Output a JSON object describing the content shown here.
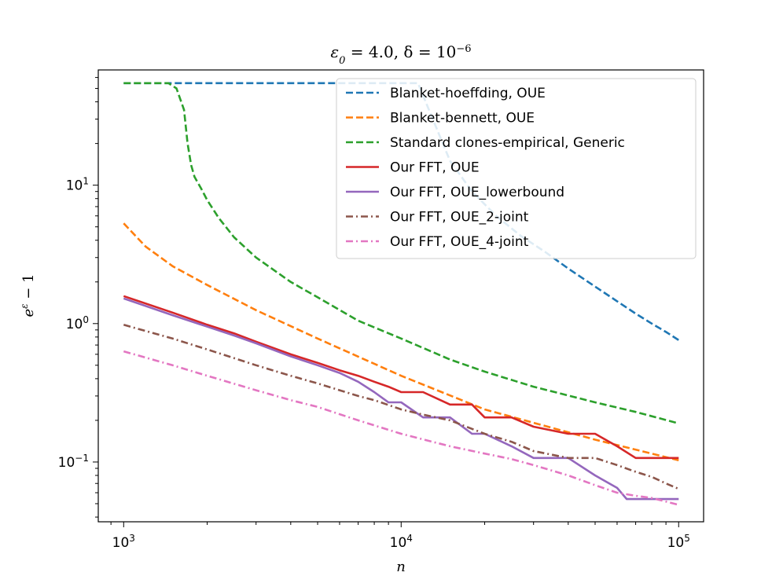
{
  "chart_data": {
    "type": "line",
    "title": "ε0 = 4.0, δ = 10^-6",
    "title_parts": {
      "main": "ε",
      "sub": "0",
      "rest": " = 4.0, δ = 10",
      "sup": "−6"
    },
    "xlabel": "n",
    "ylabel": {
      "base": "e",
      "sup": "ε",
      "rest": " − 1"
    },
    "xscale": "log",
    "yscale": "log",
    "xlim": [
      810,
      123000
    ],
    "ylim": [
      0.037,
      68
    ],
    "x_ticks": [
      {
        "value": 1000,
        "base": "10",
        "exp": "3"
      },
      {
        "value": 10000,
        "base": "10",
        "exp": "4"
      },
      {
        "value": 100000,
        "base": "10",
        "exp": "5"
      }
    ],
    "y_ticks": [
      {
        "value": 0.1,
        "base": "10",
        "exp": "−1"
      },
      {
        "value": 1,
        "base": "10",
        "exp": "0"
      },
      {
        "value": 10,
        "base": "10",
        "exp": "1"
      }
    ],
    "legend_position": "top-right",
    "series": [
      {
        "name": "Blanket-hoeffding, OUE",
        "color": "#1f77b4",
        "dash": "dashed",
        "x": [
          1000,
          11500,
          13000,
          15000,
          18000,
          22000,
          27000,
          33000,
          40000,
          50000,
          60000,
          70000,
          80000,
          90000,
          100000
        ],
        "y": [
          54.6,
          54.6,
          30,
          15,
          9,
          6,
          4.3,
          3.3,
          2.5,
          1.85,
          1.45,
          1.18,
          1.0,
          0.87,
          0.76
        ]
      },
      {
        "name": "Blanket-bennett, OUE",
        "color": "#ff7f0e",
        "dash": "dashed",
        "x": [
          1000,
          1200,
          1500,
          2000,
          3000,
          5000,
          10000,
          20000,
          50000,
          100000
        ],
        "y": [
          5.3,
          3.6,
          2.6,
          1.9,
          1.25,
          0.78,
          0.42,
          0.24,
          0.145,
          0.103
        ]
      },
      {
        "name": "Standard clones-empirical, Generic",
        "color": "#2ca02c",
        "dash": "dashed",
        "x": [
          1000,
          1450,
          1550,
          1650,
          1700,
          1750,
          1800,
          1900,
          2000,
          2200,
          2500,
          3000,
          4000,
          5000,
          7000,
          10000,
          15000,
          20000,
          30000,
          50000,
          70000,
          100000
        ],
        "y": [
          54.6,
          54.6,
          50,
          35,
          20,
          14,
          11.5,
          9.5,
          7.8,
          5.8,
          4.2,
          3.0,
          2.0,
          1.55,
          1.05,
          0.78,
          0.55,
          0.45,
          0.35,
          0.27,
          0.23,
          0.19
        ]
      },
      {
        "name": "Our FFT, OUE",
        "color": "#d62728",
        "dash": "solid",
        "x": [
          1000,
          1500,
          2000,
          2500,
          3000,
          4000,
          5000,
          6000,
          7000,
          8000,
          9000,
          10000,
          12000,
          15000,
          18000,
          20000,
          25000,
          30000,
          40000,
          50000,
          60000,
          70000,
          80000,
          100000
        ],
        "y": [
          1.58,
          1.2,
          0.98,
          0.85,
          0.74,
          0.6,
          0.52,
          0.46,
          0.42,
          0.38,
          0.35,
          0.32,
          0.32,
          0.26,
          0.26,
          0.21,
          0.21,
          0.18,
          0.16,
          0.16,
          0.13,
          0.107,
          0.107,
          0.107
        ]
      },
      {
        "name": "Our FFT, OUE_lowerbound",
        "color": "#9467bd",
        "dash": "solid",
        "x": [
          1000,
          1500,
          2000,
          2500,
          3000,
          4000,
          5000,
          6000,
          7000,
          8000,
          9000,
          10000,
          12000,
          15000,
          18000,
          20000,
          25000,
          30000,
          40000,
          50000,
          60000,
          65000,
          70000,
          100000
        ],
        "y": [
          1.52,
          1.15,
          0.95,
          0.82,
          0.72,
          0.58,
          0.5,
          0.44,
          0.38,
          0.32,
          0.27,
          0.27,
          0.21,
          0.21,
          0.16,
          0.16,
          0.13,
          0.107,
          0.107,
          0.08,
          0.065,
          0.054,
          0.054,
          0.054
        ]
      },
      {
        "name": "Our FFT, OUE_2-joint",
        "color": "#8c564b",
        "dash": "dashdot",
        "x": [
          1000,
          1500,
          2000,
          3000,
          4000,
          5000,
          6000,
          7000,
          8000,
          10000,
          12000,
          15000,
          20000,
          25000,
          30000,
          40000,
          50000,
          60000,
          70000,
          80000,
          90000,
          100000
        ],
        "y": [
          0.98,
          0.78,
          0.65,
          0.5,
          0.42,
          0.37,
          0.33,
          0.3,
          0.28,
          0.24,
          0.22,
          0.2,
          0.16,
          0.14,
          0.12,
          0.107,
          0.107,
          0.095,
          0.085,
          0.078,
          0.07,
          0.064
        ]
      },
      {
        "name": "Our FFT, OUE_4-joint",
        "color": "#e377c2",
        "dash": "dashdot",
        "x": [
          1000,
          1500,
          2000,
          3000,
          4000,
          5000,
          7000,
          10000,
          15000,
          20000,
          25000,
          30000,
          40000,
          50000,
          60000,
          70000,
          80000,
          100000
        ],
        "y": [
          0.63,
          0.5,
          0.42,
          0.33,
          0.28,
          0.25,
          0.2,
          0.16,
          0.13,
          0.115,
          0.105,
          0.095,
          0.08,
          0.068,
          0.06,
          0.057,
          0.055,
          0.049
        ]
      }
    ]
  }
}
